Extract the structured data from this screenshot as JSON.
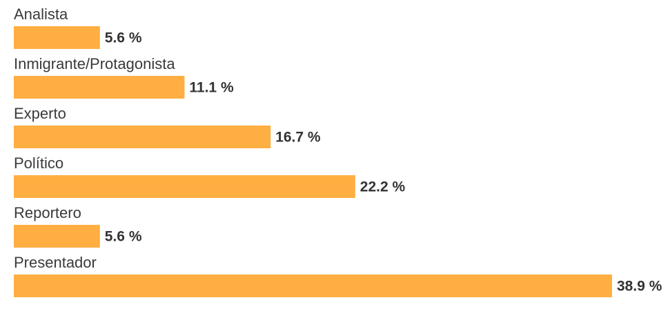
{
  "chart_data": {
    "type": "bar",
    "orientation": "horizontal",
    "categories": [
      "Analista",
      "Inmigrante/Protagonista",
      "Experto",
      "Político",
      "Reportero",
      "Presentador"
    ],
    "values": [
      5.6,
      11.1,
      16.7,
      22.2,
      5.6,
      38.9
    ],
    "value_labels": [
      "5.6 %",
      "11.1 %",
      "16.7 %",
      "22.2 %",
      "5.6 %",
      "38.9 %"
    ],
    "unit": "%",
    "xlim": [
      0,
      38.9
    ],
    "grid": false,
    "legend": "none",
    "bar_color": "#FFAE42",
    "title": "",
    "xlabel": "",
    "ylabel": ""
  }
}
